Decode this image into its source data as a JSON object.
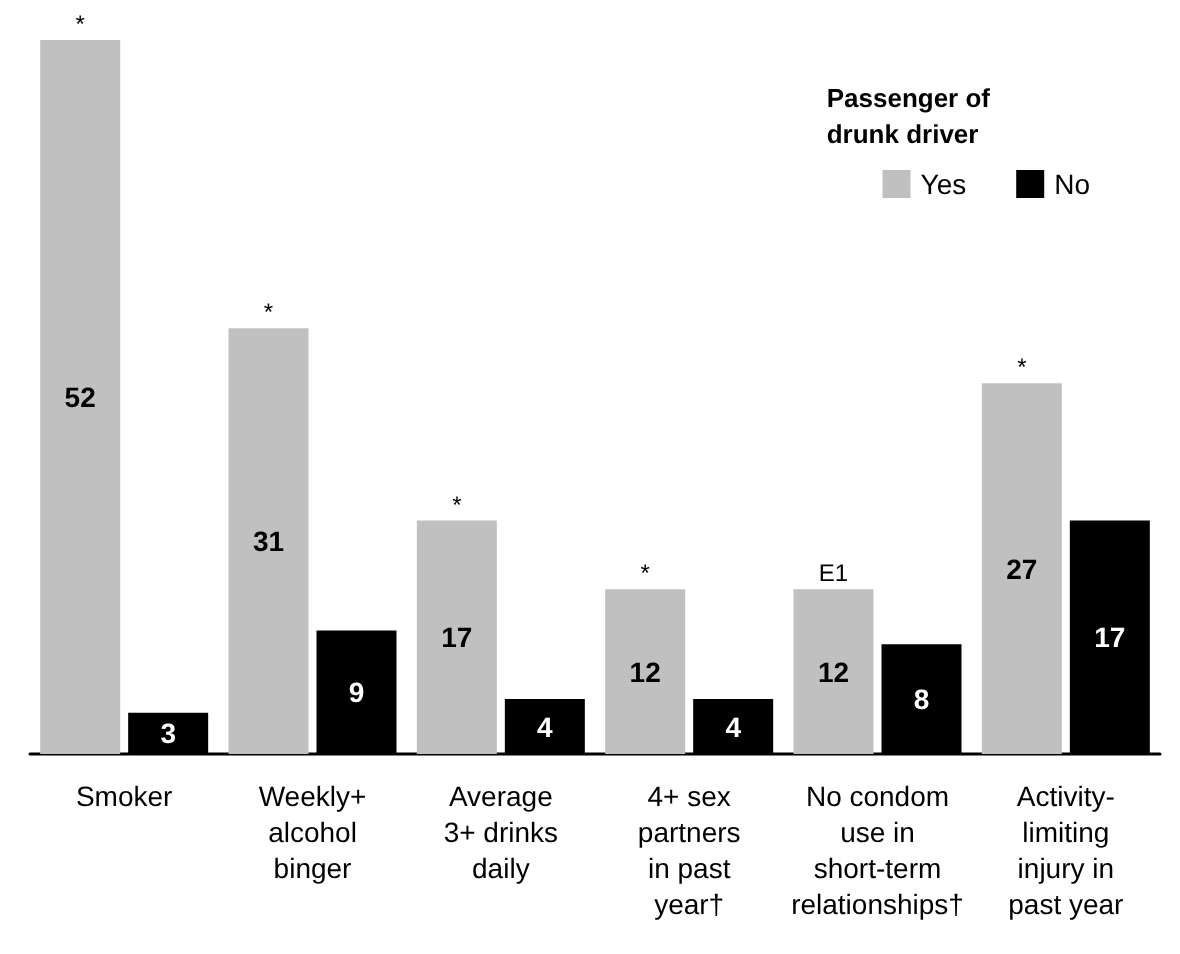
{
  "chart_data": {
    "type": "bar",
    "legend_title": "Passenger of\ndrunk driver",
    "legend": "top right",
    "data_labels": true,
    "categories": [
      "Smoker",
      "Weekly+\nalcohol\nbinger",
      "Average\n3+ drinks\ndaily",
      "4+ sex\npartners\nin past\nyear†",
      "No condom\nuse in\nshort-term\nrelationships†",
      "Activity-\nlimiting\ninjury in\npast year"
    ],
    "series": [
      {
        "name": "Yes",
        "color": "#c0c0c0",
        "values": [
          52,
          31,
          17,
          12,
          12,
          27
        ]
      },
      {
        "name": "No",
        "color": "#000000",
        "values": [
          3,
          9,
          4,
          4,
          8,
          17
        ]
      }
    ],
    "annotations": [
      {
        "text": "*",
        "x": "Smoker",
        "y": 52
      },
      {
        "text": "*",
        "x": "Weekly+\nalcohol\nbinger",
        "y": 31
      },
      {
        "text": "*",
        "x": "Average\n3+ drinks\ndaily",
        "y": 17
      },
      {
        "text": "*",
        "x": "4+ sex\npartners\nin past\nyear†",
        "y": 12
      },
      {
        "text": "E1",
        "x": "No condom\nuse in\nshort-term\nrelationships†",
        "y": 12
      },
      {
        "text": "*",
        "x": "Activity-\nlimiting\ninjury in\npast year",
        "y": 27
      }
    ]
  }
}
